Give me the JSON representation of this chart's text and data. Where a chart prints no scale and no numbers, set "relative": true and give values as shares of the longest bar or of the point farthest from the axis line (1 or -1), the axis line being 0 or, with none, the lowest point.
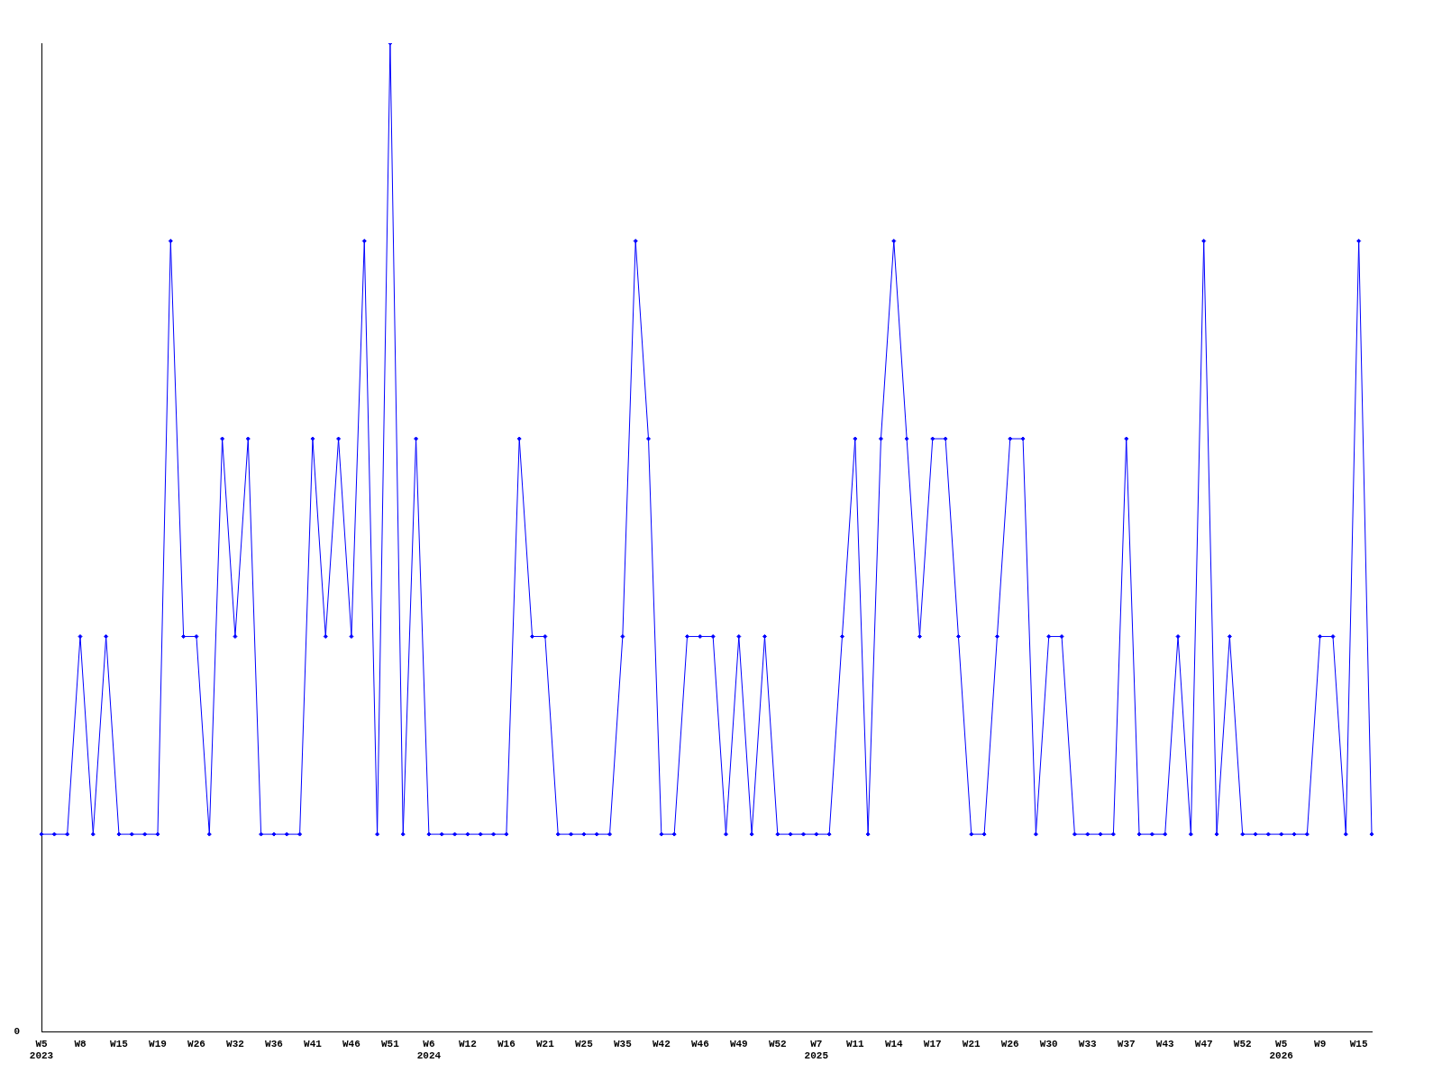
{
  "chart_data": {
    "type": "line",
    "relative": true,
    "color": "#0000ff",
    "marker": "diamond",
    "grid": false,
    "legend": false,
    "categories": [
      "W5\n2023",
      null,
      null,
      "W8",
      null,
      null,
      "W15",
      null,
      null,
      "W19",
      null,
      null,
      "W26",
      null,
      null,
      "W32",
      null,
      null,
      "W36",
      null,
      null,
      "W41",
      null,
      null,
      "W46",
      null,
      null,
      "W51",
      null,
      null,
      "W6\n2024",
      null,
      null,
      "W12",
      null,
      null,
      "W16",
      null,
      null,
      "W21",
      null,
      null,
      "W25",
      null,
      null,
      "W35",
      null,
      null,
      "W42",
      null,
      null,
      "W46",
      null,
      null,
      "W49",
      null,
      null,
      "W52",
      null,
      null,
      "W7\n2025",
      null,
      null,
      "W11",
      null,
      null,
      "W14",
      null,
      null,
      "W17",
      null,
      null,
      "W21",
      null,
      null,
      "W26",
      null,
      null,
      "W30",
      null,
      null,
      "W33",
      null,
      null,
      "W37",
      null,
      null,
      "W43",
      null,
      null,
      "W47",
      null,
      null,
      "W52",
      null,
      null,
      "W5\n2026",
      null,
      null,
      "W9",
      null,
      null,
      "W15",
      null
    ],
    "values": [
      0.2,
      0.2,
      0.2,
      0.4,
      0.2,
      0.4,
      0.2,
      0.2,
      0.2,
      0.2,
      0.8,
      0.4,
      0.4,
      0.2,
      0.6,
      0.4,
      0.6,
      0.2,
      0.2,
      0.2,
      0.2,
      0.6,
      0.4,
      0.6,
      0.4,
      0.8,
      0.2,
      1,
      0.2,
      0.6,
      0.2,
      0.2,
      0.2,
      0.2,
      0.2,
      0.2,
      0.2,
      0.6,
      0.4,
      0.4,
      0.2,
      0.2,
      0.2,
      0.2,
      0.2,
      0.4,
      0.8,
      0.6,
      0.2,
      0.2,
      0.4,
      0.4,
      0.4,
      0.2,
      0.4,
      0.2,
      0.4,
      0.2,
      0.2,
      0.2,
      0.2,
      0.2,
      0.4,
      0.6,
      0.2,
      0.6,
      0.8,
      0.6,
      0.4,
      0.6,
      0.6,
      0.4,
      0.2,
      0.2,
      0.4,
      0.6,
      0.6,
      0.2,
      0.4,
      0.4,
      0.2,
      0.2,
      0.2,
      0.2,
      0.6,
      0.2,
      0.2,
      0.2,
      0.4,
      0.2,
      0.8,
      0.2,
      0.4,
      0.2,
      0.2,
      0.2,
      0.2,
      0.2,
      0.2,
      0.4,
      0.4,
      0.2,
      0.8,
      0.2
    ],
    "annotations": [
      "0"
    ]
  }
}
